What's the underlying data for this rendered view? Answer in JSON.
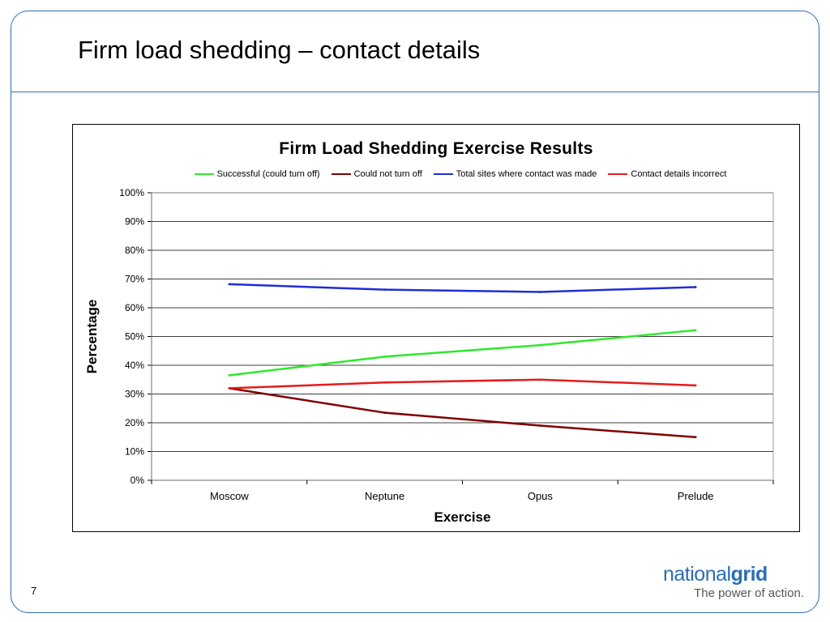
{
  "slide": {
    "title": "Firm load shedding – contact details",
    "page_number": "7"
  },
  "brand": {
    "name_light": "national",
    "name_bold": "grid",
    "tagline": "The power of action."
  },
  "colors": {
    "frame": "#2b6db3",
    "successful": "#2ee82e",
    "could_not_turn_off": "#800000",
    "total_contact": "#1f2ed6",
    "contact_incorrect": "#e51b1b"
  },
  "chart_data": {
    "type": "line",
    "title": "Firm Load Shedding Exercise Results",
    "xlabel": "Exercise",
    "ylabel": "Percentage",
    "categories": [
      "Moscow",
      "Neptune",
      "Opus",
      "Prelude"
    ],
    "ylim": [
      0,
      100
    ],
    "yticks": [
      "0%",
      "10%",
      "20%",
      "30%",
      "40%",
      "50%",
      "60%",
      "70%",
      "80%",
      "90%",
      "100%"
    ],
    "grid": true,
    "legend_position": "top",
    "series": [
      {
        "name": "Successful (could turn off)",
        "color": "#2ee82e",
        "values": [
          36.5,
          43,
          47,
          52.2
        ]
      },
      {
        "name": "Could not turn off",
        "color": "#800000",
        "values": [
          32,
          23.5,
          19,
          15
        ]
      },
      {
        "name": "Total sites where contact was made",
        "color": "#1f2ed6",
        "values": [
          68.2,
          66.3,
          65.5,
          67.2
        ]
      },
      {
        "name": "Contact details incorrect",
        "color": "#e51b1b",
        "values": [
          32,
          34,
          35,
          33
        ]
      }
    ]
  }
}
